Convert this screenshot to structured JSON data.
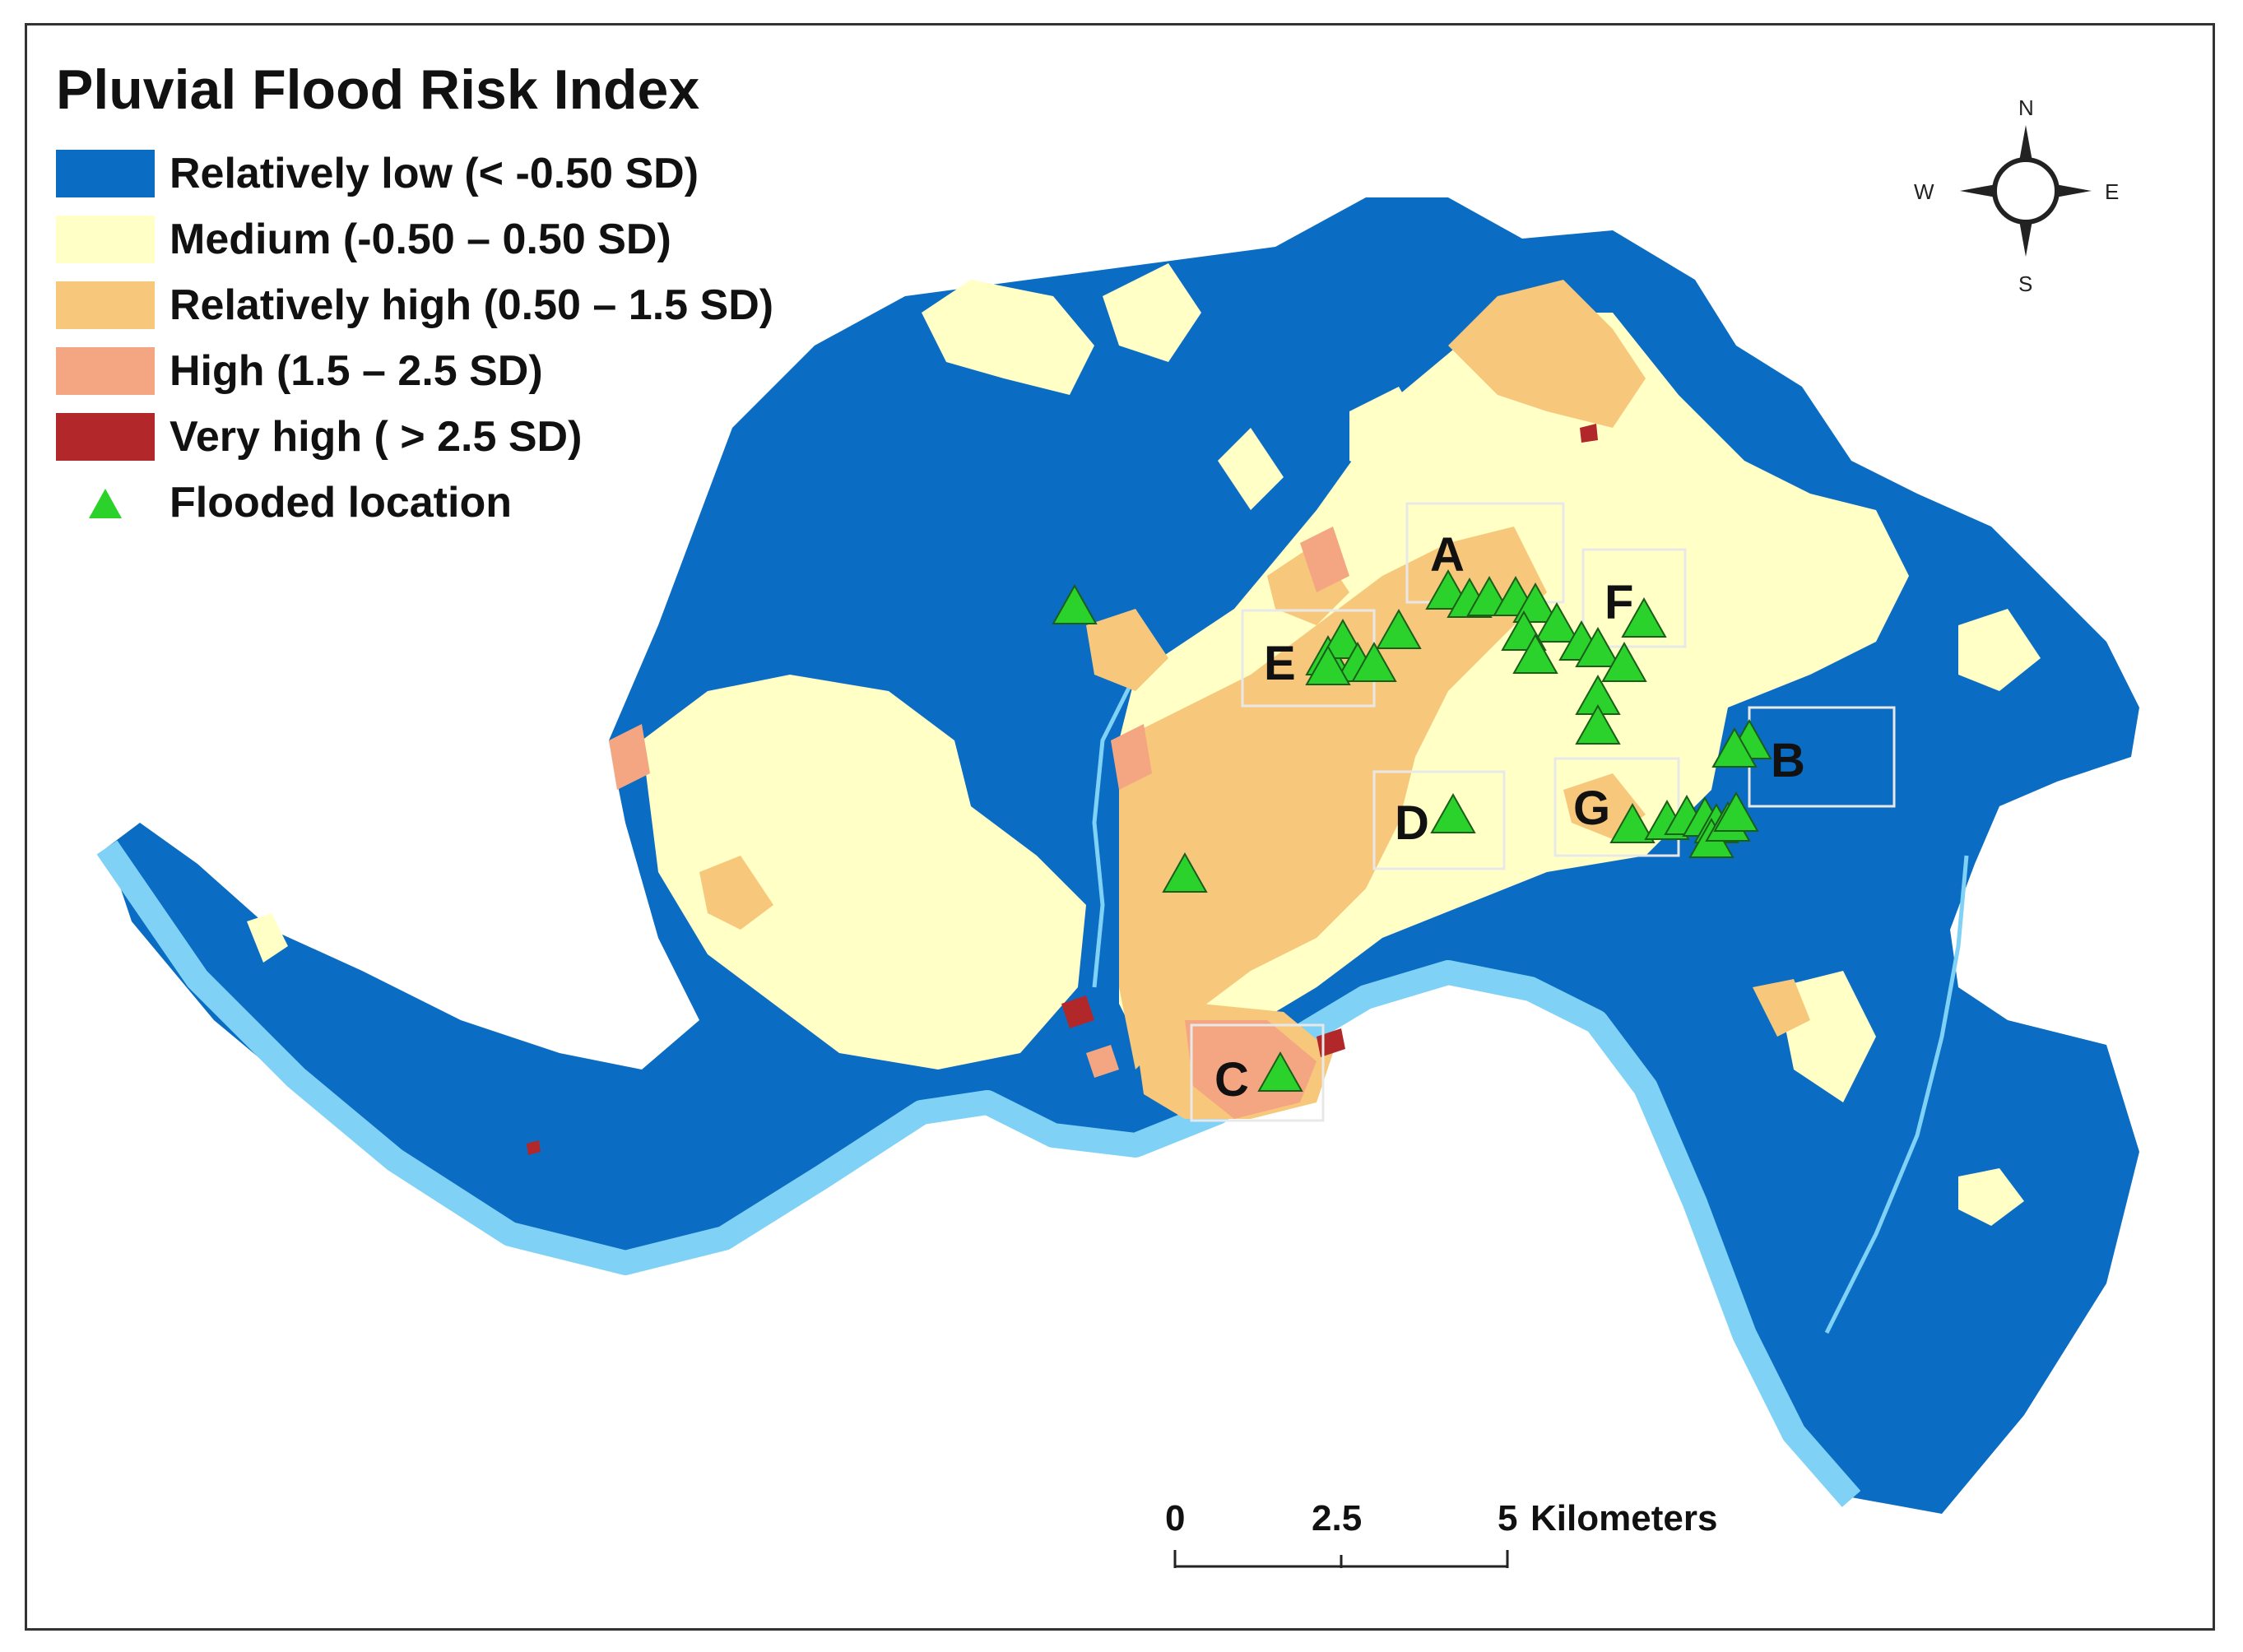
{
  "legend": {
    "title": "Pluvial Flood Risk Index",
    "items": [
      {
        "label": "Relatively low (< -0.50 SD)",
        "color": "#0a6cc2"
      },
      {
        "label": "Medium (-0.50 – 0.50 SD)",
        "color": "#ffffc6"
      },
      {
        "label": "Relatively high (0.50 – 1.5 SD)",
        "color": "#f7c87b"
      },
      {
        "label": "High (1.5 – 2.5 SD)",
        "color": "#f4a582"
      },
      {
        "label": "Very high ( > 2.5 SD)",
        "color": "#b2272a"
      }
    ],
    "flooded": {
      "label": "Flooded location",
      "color": "#2bd22b"
    }
  },
  "river_color": "#7fd2f6",
  "zones": [
    "A",
    "B",
    "C",
    "D",
    "E",
    "F",
    "G"
  ],
  "compass": {
    "n": "N",
    "s": "S",
    "e": "E",
    "w": "W"
  },
  "scalebar": {
    "ticks": [
      "0",
      "2.5",
      "5"
    ],
    "unit": "Kilometers"
  }
}
